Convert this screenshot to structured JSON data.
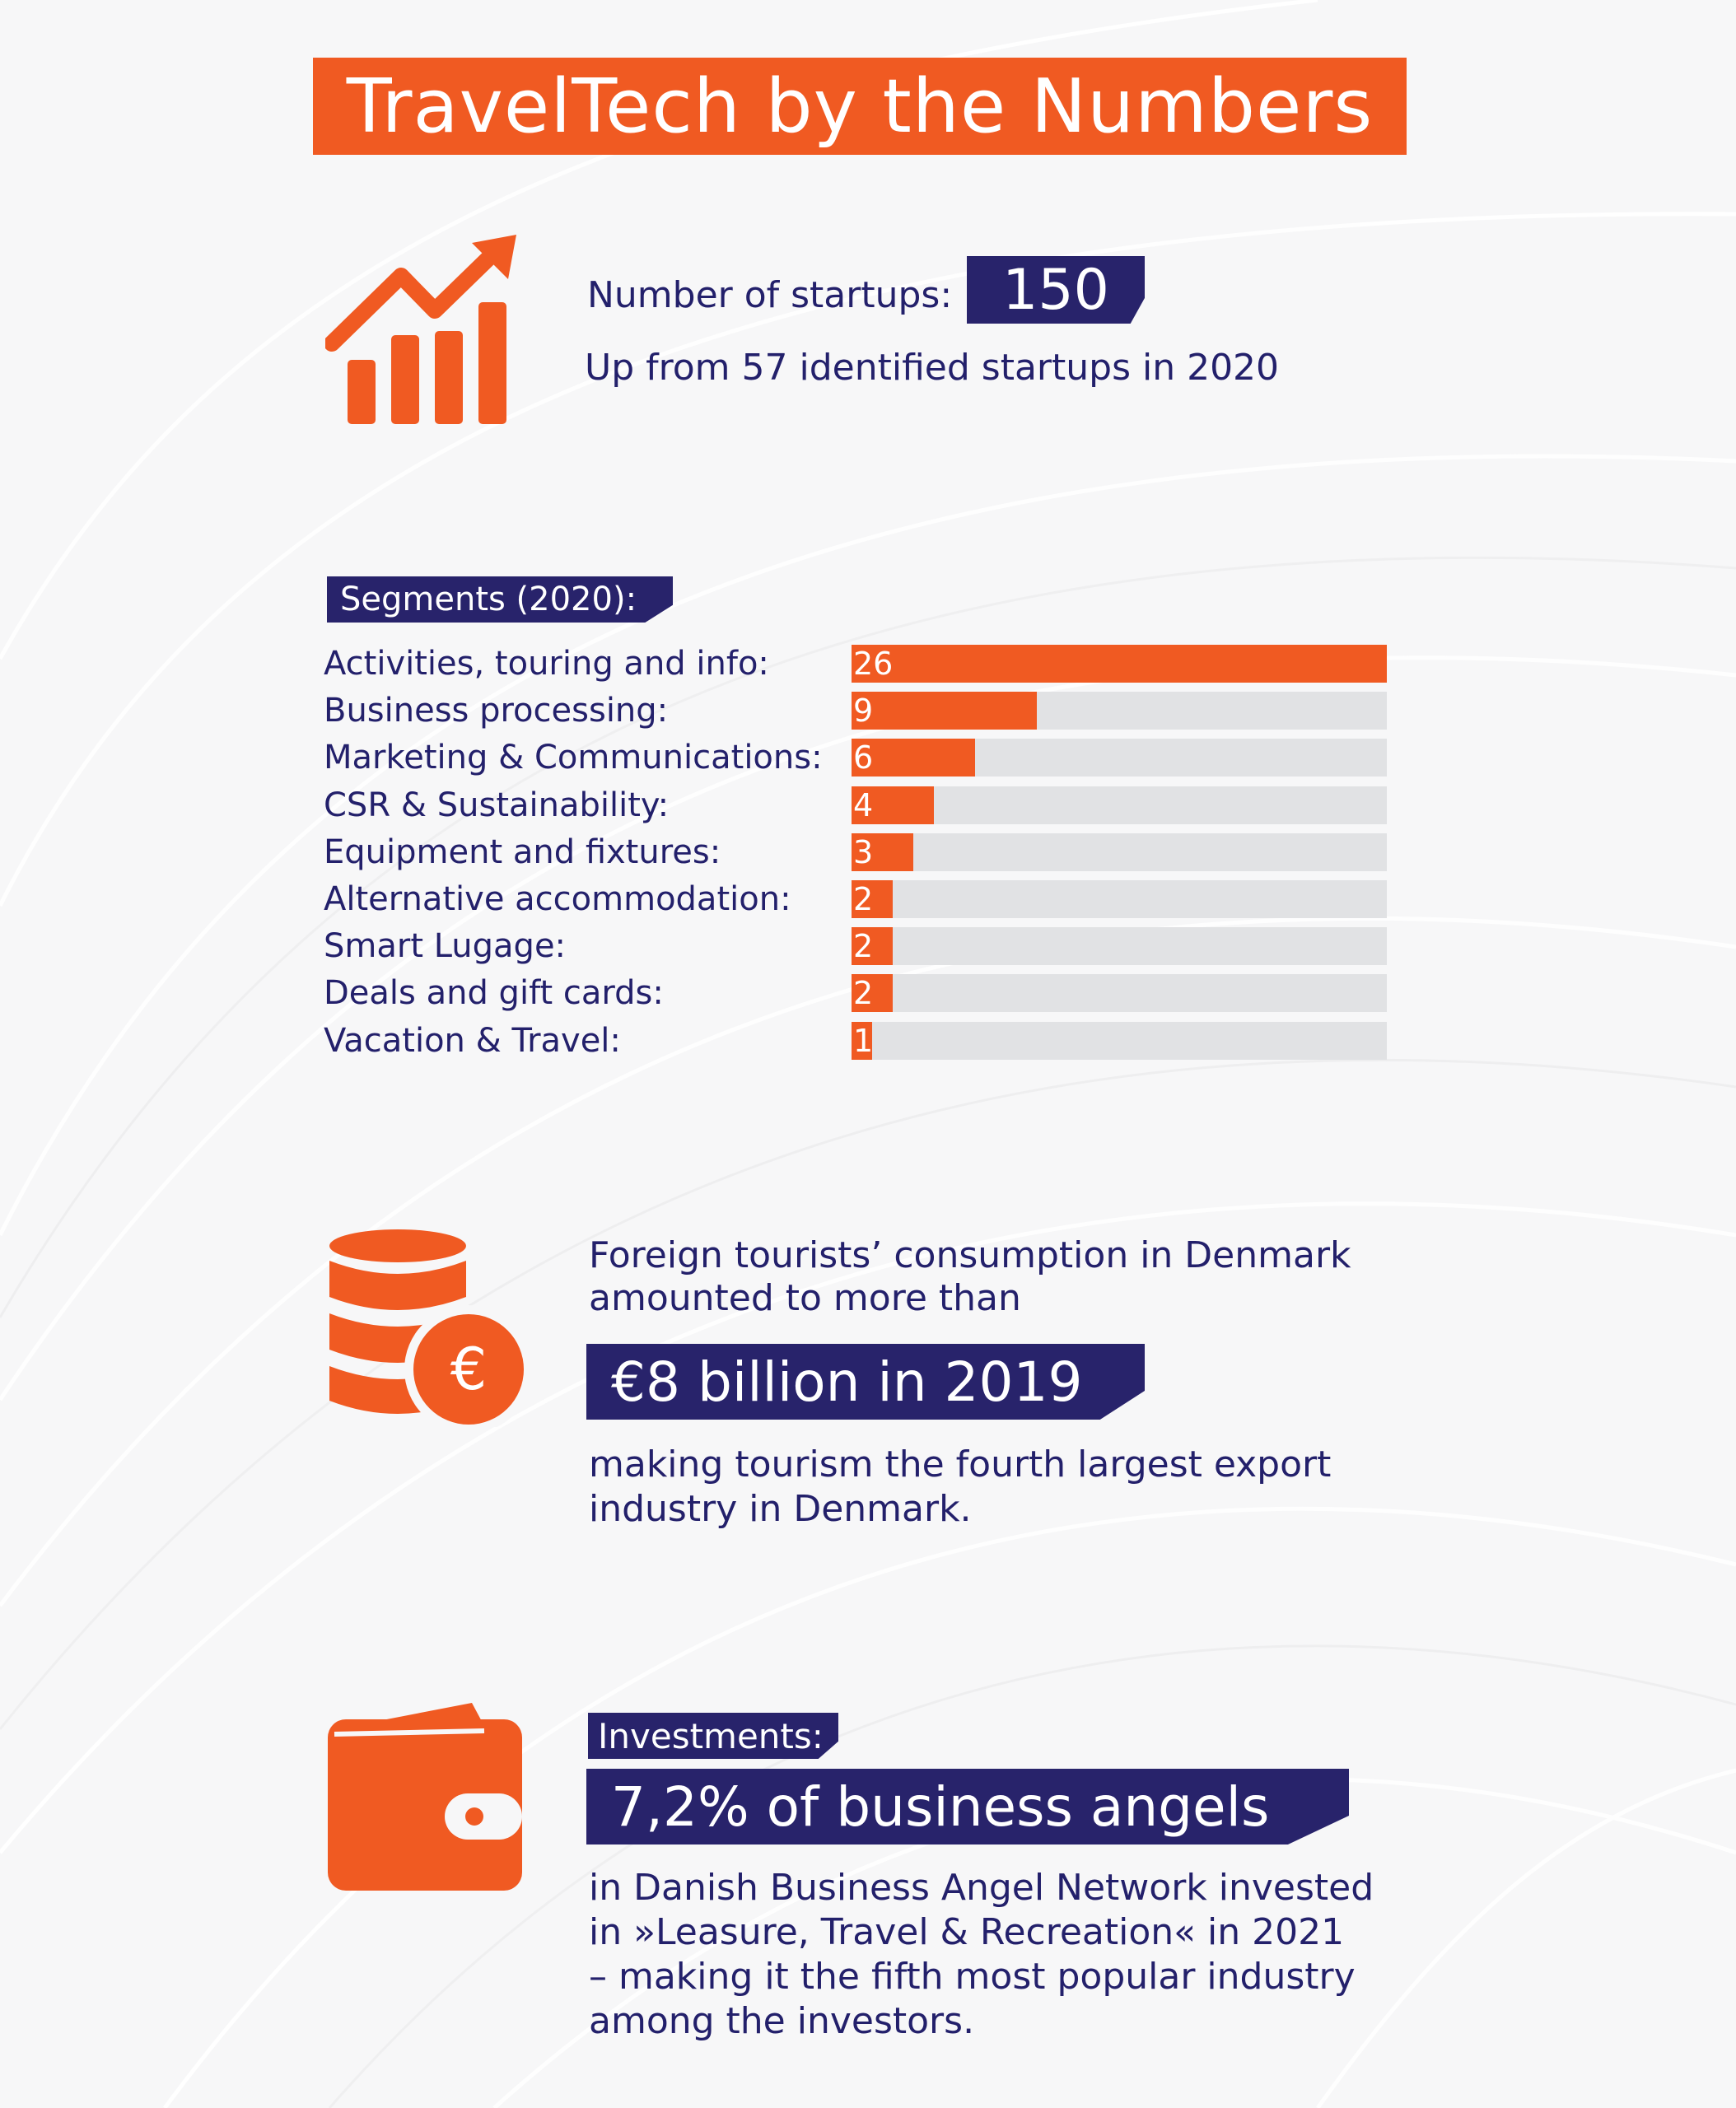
{
  "title": "TravelTech by the Numbers",
  "startups": {
    "label": "Number of startups:",
    "value": "150",
    "note": "Up from 57 identified startups in 2020"
  },
  "segments": {
    "heading": "Segments (2020):"
  },
  "chart_data": {
    "type": "bar",
    "orientation": "horizontal",
    "title": "Segments (2020):",
    "categories": [
      "Activities, touring and info:",
      "Business processing:",
      "Marketing & Communications:",
      "CSR & Sustainability:",
      "Equipment and fixtures:",
      "Alternative accommodation:",
      "Smart Lugage:",
      "Deals and gift cards:",
      "Vacation & Travel:"
    ],
    "values": [
      26,
      9,
      6,
      4,
      3,
      2,
      2,
      2,
      1
    ],
    "xlim": [
      0,
      26
    ],
    "grid": false,
    "colors": {
      "bar": "#f05a22",
      "track": "#e1e2e4"
    }
  },
  "tourism": {
    "intro_line1": "Foreign tourists’ consumption in Denmark",
    "intro_line2": "amounted to more than",
    "highlight": "€8 billion in 2019",
    "outro_line1": "making tourism the fourth largest export",
    "outro_line2": "industry in Denmark.",
    "icon_symbol": "€"
  },
  "investments": {
    "label": "Investments:",
    "highlight": "7,2% of business angels",
    "line1": "in Danish Business Angel Network invested",
    "line2": "in »Leasure, Travel & Recreation« in 2021",
    "line3": "– making it the fifth most popular industry",
    "line4": "among the investors."
  },
  "icons": [
    "growth-chart-icon",
    "coins-euro-icon",
    "wallet-icon"
  ],
  "colors": {
    "accent": "#f05a22",
    "navy": "#28236b",
    "text": "#23206b",
    "background": "#f7f7f8"
  }
}
